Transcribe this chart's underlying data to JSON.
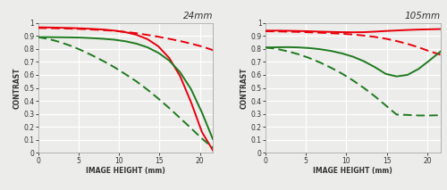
{
  "title_left": "24mm",
  "title_right": "105mm",
  "xlabel": "IMAGE HEIGHT (mm)",
  "ylabel": "CONTRAST",
  "xlim": [
    0,
    21.6
  ],
  "ylim": [
    0,
    1.0
  ],
  "xticks": [
    0,
    5,
    10,
    15,
    20
  ],
  "yticks": [
    0,
    0.1,
    0.2,
    0.3,
    0.4,
    0.5,
    0.6,
    0.7,
    0.8,
    0.9,
    1
  ],
  "background_color": "#ececea",
  "plot_bg_color": "#ececea",
  "grid_color": "#ffffff",
  "red_solid_color": "#e8000a",
  "red_dash_color": "#e8000a",
  "green_solid_color": "#1e7a1e",
  "green_dash_color": "#1e7a1e",
  "left_red_solid": [
    0.965,
    0.964,
    0.962,
    0.96,
    0.957,
    0.953,
    0.948,
    0.94,
    0.928,
    0.908,
    0.875,
    0.82,
    0.73,
    0.59,
    0.39,
    0.16,
    0.02
  ],
  "left_red_dashed": [
    0.96,
    0.959,
    0.957,
    0.955,
    0.952,
    0.948,
    0.944,
    0.938,
    0.93,
    0.92,
    0.907,
    0.893,
    0.877,
    0.86,
    0.84,
    0.818,
    0.79
  ],
  "left_green_solid": [
    0.89,
    0.89,
    0.889,
    0.888,
    0.886,
    0.882,
    0.877,
    0.87,
    0.858,
    0.84,
    0.812,
    0.77,
    0.71,
    0.62,
    0.49,
    0.31,
    0.105
  ],
  "left_green_dashed": [
    0.89,
    0.875,
    0.852,
    0.823,
    0.788,
    0.748,
    0.705,
    0.658,
    0.605,
    0.55,
    0.487,
    0.418,
    0.345,
    0.268,
    0.19,
    0.11,
    0.04
  ],
  "right_red_solid": [
    0.94,
    0.94,
    0.939,
    0.937,
    0.935,
    0.932,
    0.93,
    0.928,
    0.927,
    0.928,
    0.932,
    0.937,
    0.941,
    0.945,
    0.948,
    0.95,
    0.952
  ],
  "right_red_dashed": [
    0.935,
    0.934,
    0.932,
    0.93,
    0.927,
    0.924,
    0.92,
    0.916,
    0.91,
    0.902,
    0.892,
    0.878,
    0.86,
    0.838,
    0.812,
    0.782,
    0.755
  ],
  "right_green_solid": [
    0.81,
    0.812,
    0.813,
    0.811,
    0.806,
    0.797,
    0.784,
    0.765,
    0.74,
    0.705,
    0.66,
    0.608,
    0.588,
    0.6,
    0.645,
    0.71,
    0.778
  ],
  "right_green_dashed": [
    0.81,
    0.8,
    0.782,
    0.759,
    0.73,
    0.695,
    0.655,
    0.61,
    0.558,
    0.5,
    0.436,
    0.366,
    0.295,
    0.292,
    0.288,
    0.288,
    0.29
  ],
  "x_vals": [
    0.0,
    1.35,
    2.7,
    4.05,
    5.4,
    6.75,
    8.1,
    9.45,
    10.8,
    12.15,
    13.5,
    14.85,
    16.2,
    17.55,
    18.9,
    20.25,
    21.6
  ],
  "linewidth": 1.4,
  "title_fontsize": 7.5,
  "axis_label_fontsize": 5.5,
  "tick_fontsize": 5.5
}
